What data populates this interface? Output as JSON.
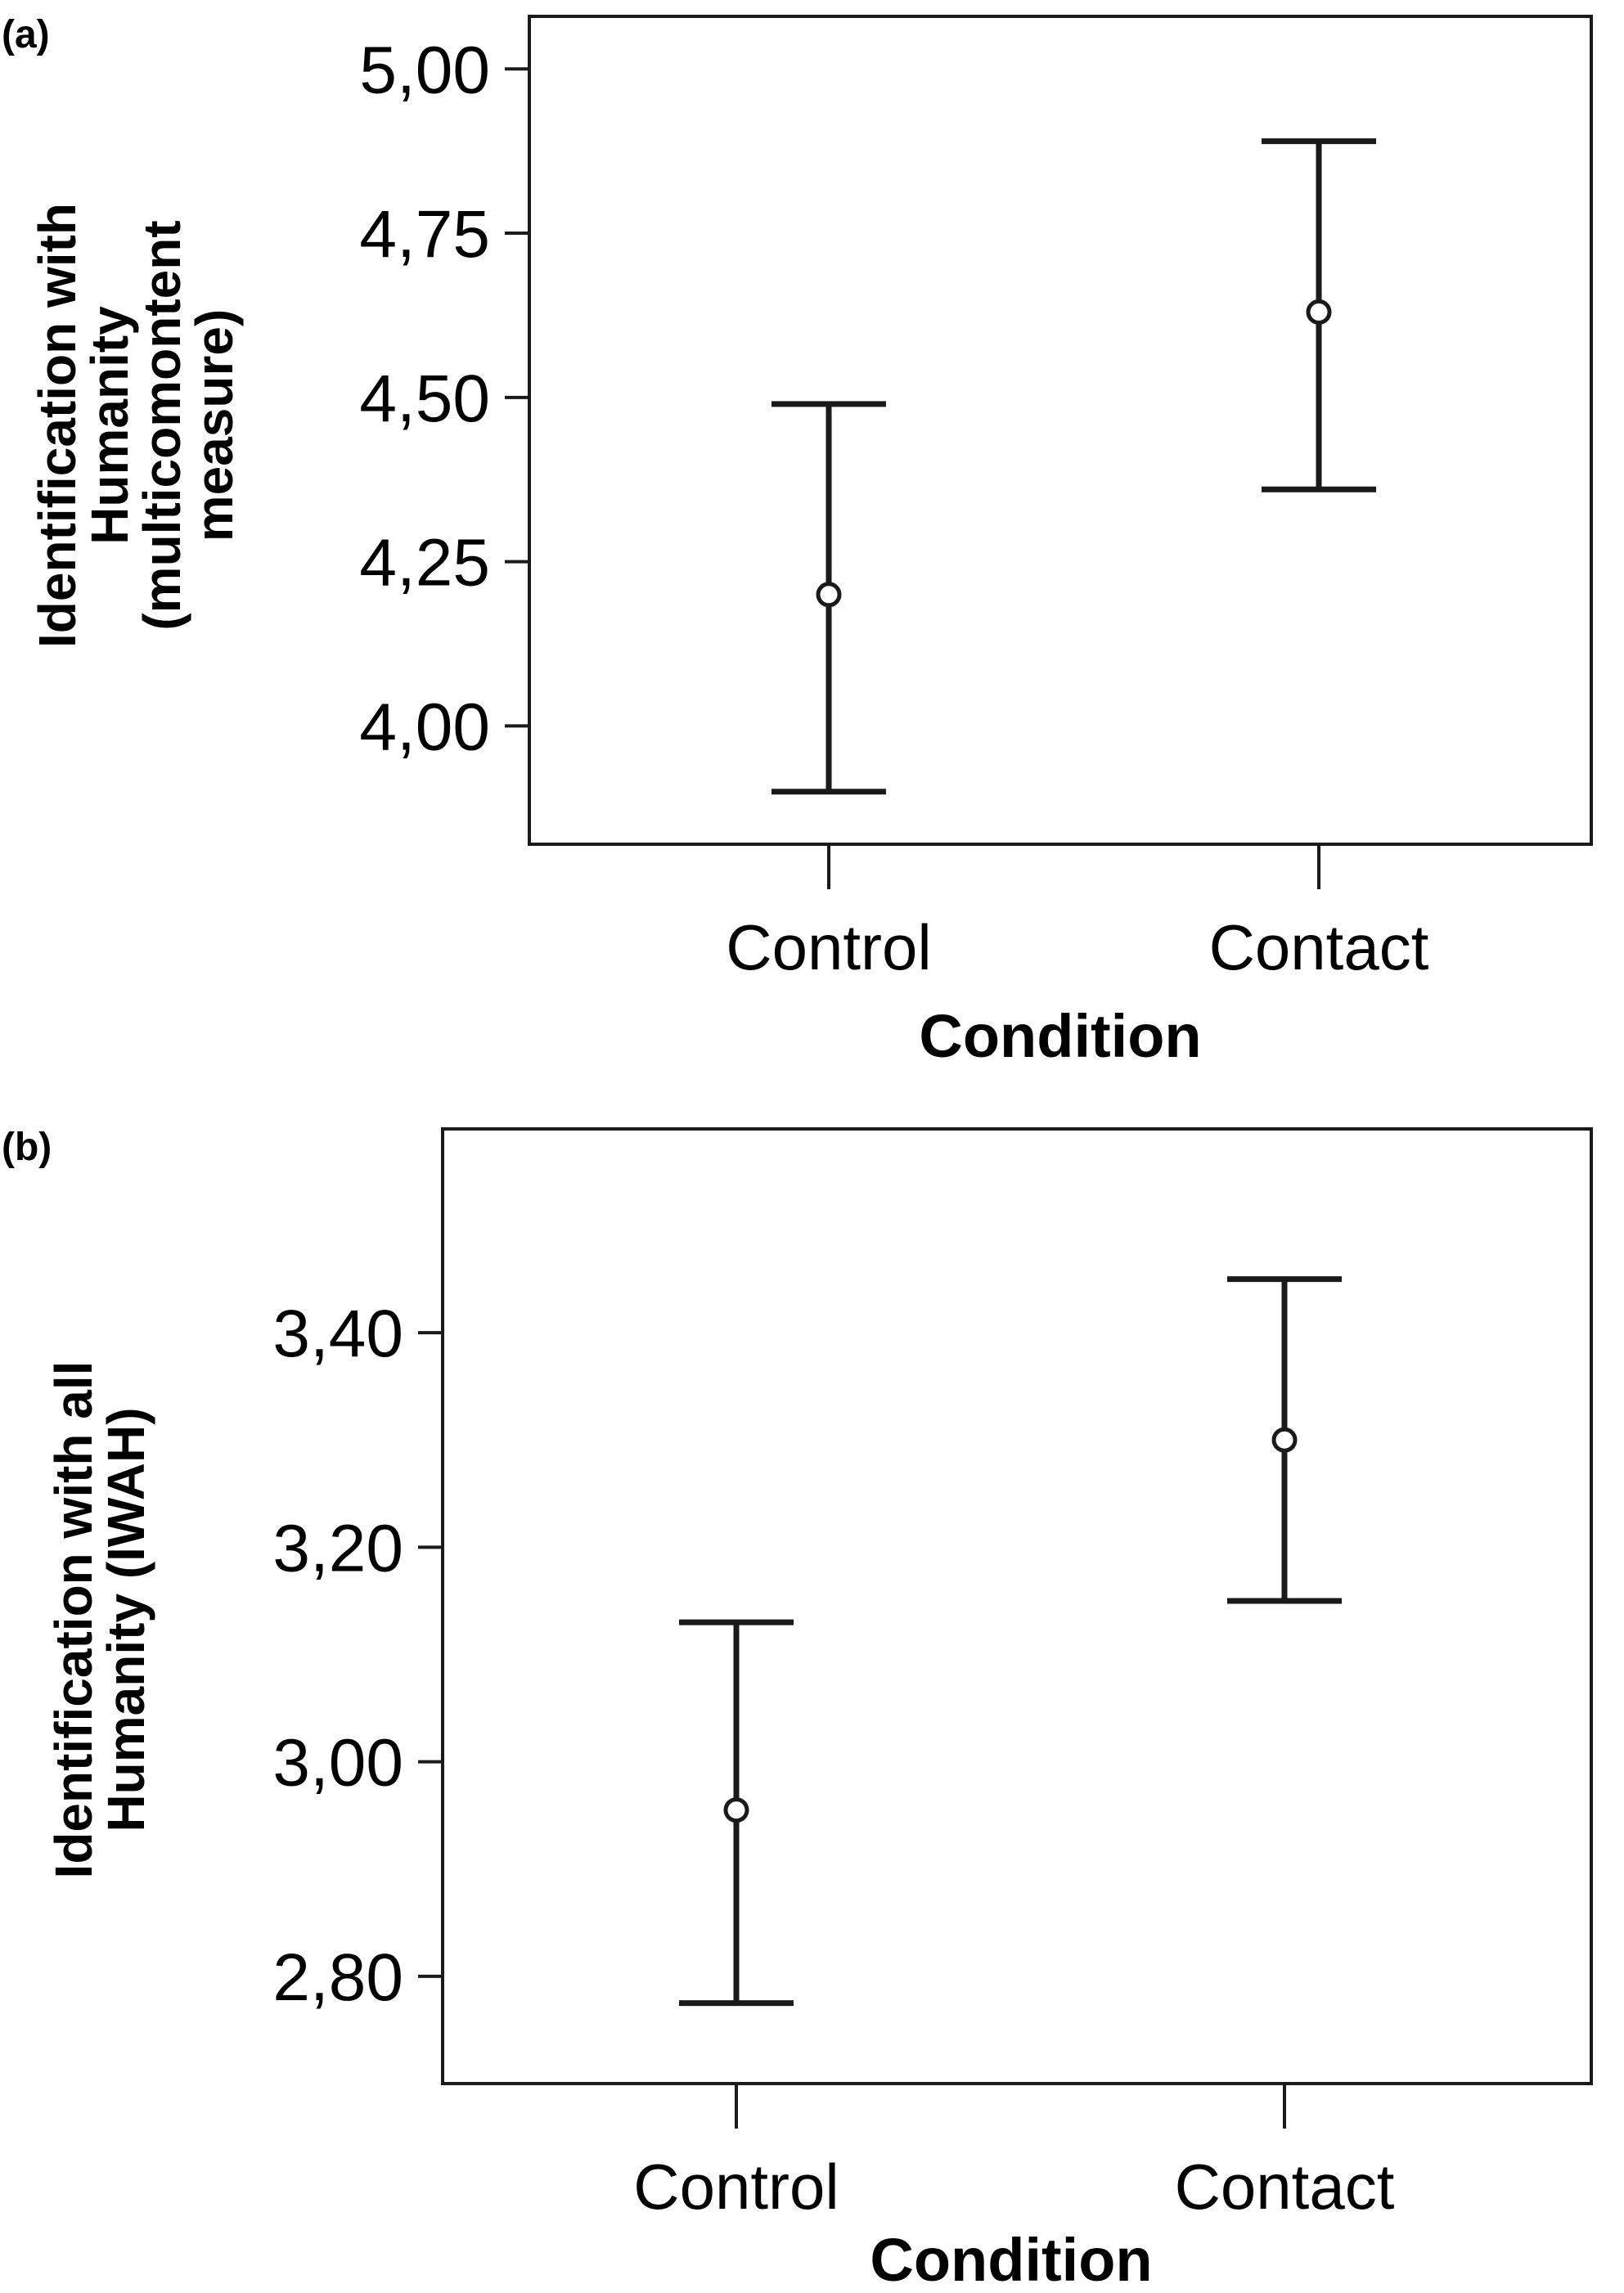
{
  "chart_data": [
    {
      "panel_label": "(a)",
      "type": "errorbar",
      "categories": [
        "Control",
        "Contact"
      ],
      "means": [
        4.2,
        4.63
      ],
      "lower": [
        3.9,
        4.36
      ],
      "upper": [
        4.49,
        4.89
      ],
      "yticks": [
        "5,00",
        "4,75",
        "4,50",
        "4,25",
        "4,00"
      ],
      "ytick_values": [
        5.0,
        4.75,
        4.5,
        4.25,
        4.0
      ],
      "ylim": [
        3.82,
        5.08
      ],
      "xlabel": "Condition",
      "ylabel_lines": [
        "Identification with",
        "Humanity",
        "(multicomontent",
        "measure)"
      ],
      "grid": false
    },
    {
      "panel_label": "(b)",
      "type": "errorbar",
      "categories": [
        "Control",
        "Contact"
      ],
      "means": [
        2.955,
        3.3
      ],
      "lower": [
        2.775,
        3.15
      ],
      "upper": [
        3.13,
        3.45
      ],
      "yticks": [
        "3,40",
        "3,20",
        "3,00",
        "2,80"
      ],
      "ytick_values": [
        3.4,
        3.2,
        3.0,
        2.8
      ],
      "ylim": [
        2.7,
        3.59
      ],
      "xlabel": "Condition",
      "ylabel_lines": [
        "Identification with all",
        "Humanity (IWAH)"
      ],
      "grid": false
    }
  ]
}
